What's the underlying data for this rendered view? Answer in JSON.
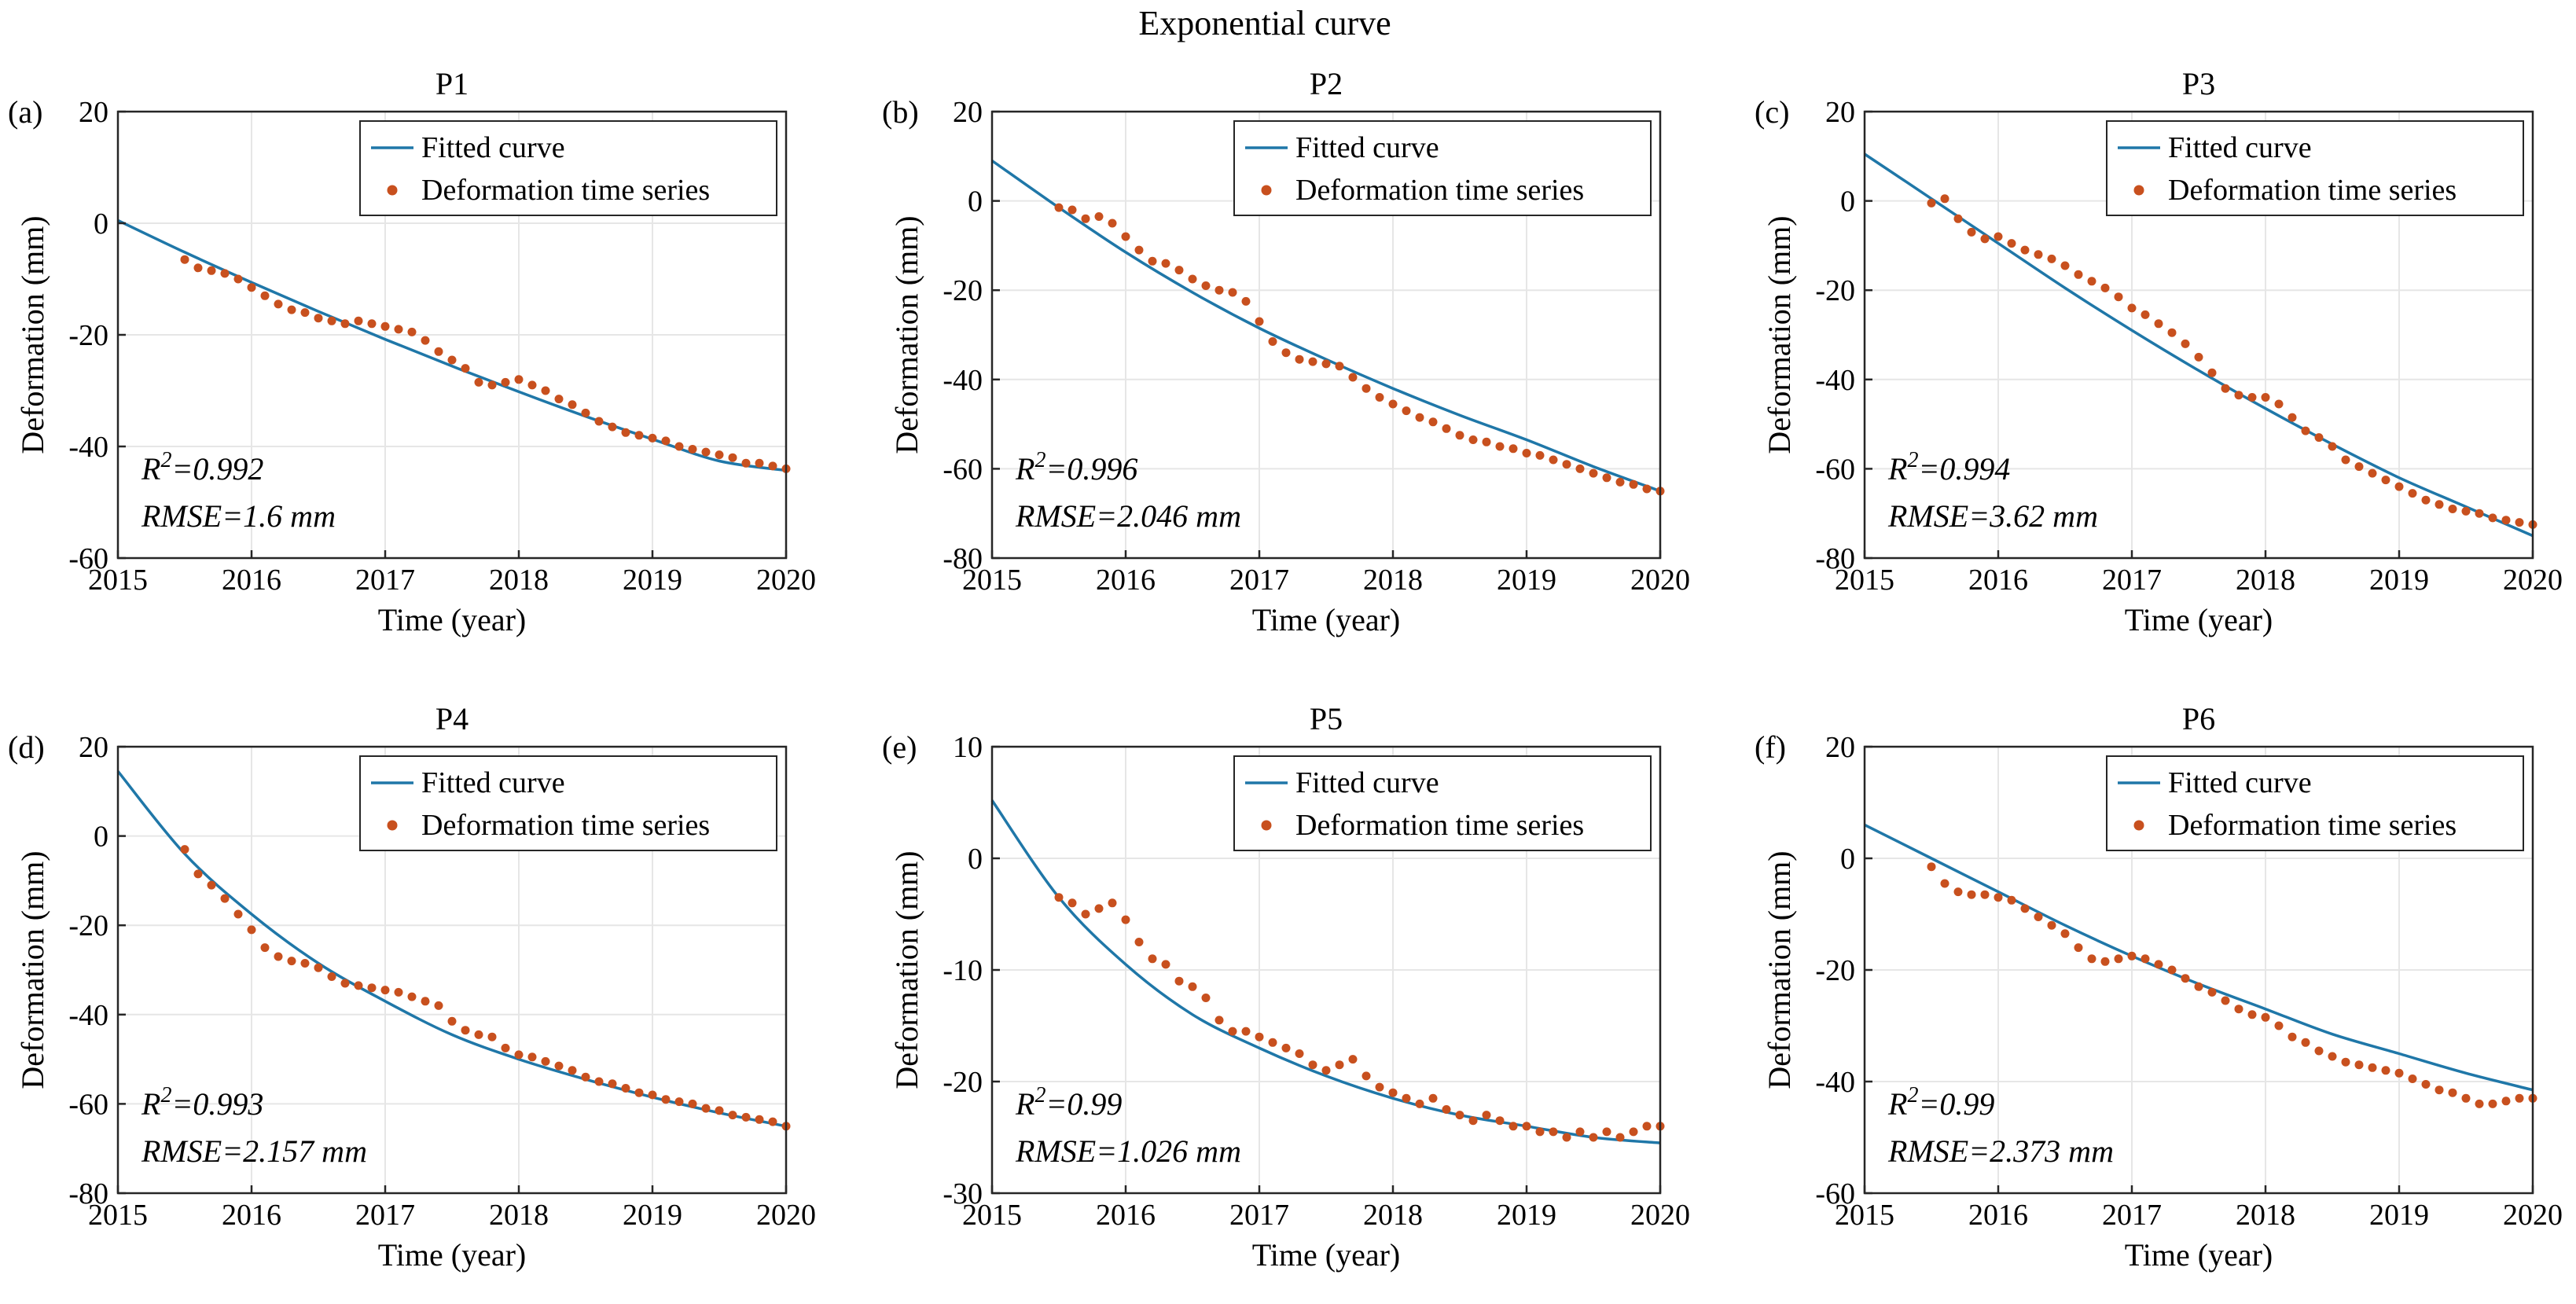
{
  "figure": {
    "title": "Exponential curve"
  },
  "legend": {
    "fit_label": "Fitted curve",
    "obs_label": "Deformation time series",
    "placement": "top-right"
  },
  "colors": {
    "fit": "#1f77a8",
    "obs": "#c8501e",
    "grid": "#e6e6e6",
    "axis": "#262626"
  },
  "chart_data": [
    {
      "type": "scatter",
      "panel": "(a)",
      "title": "P1",
      "xlabel": "Time (year)",
      "ylabel": "Deformation (mm)",
      "xlim": [
        2015,
        2020
      ],
      "ylim": [
        -60,
        20
      ],
      "xticks": [
        2015,
        2016,
        2017,
        2018,
        2019,
        2020
      ],
      "yticks": [
        -60,
        -40,
        -20,
        0,
        20
      ],
      "r2_value": "=0.992",
      "rmse_label": "RMSE=1.6 mm",
      "fit_x": [
        2015,
        2015.5,
        2016,
        2016.5,
        2017,
        2017.5,
        2018,
        2018.5,
        2019,
        2019.5,
        2020
      ],
      "fit_y": [
        0.5,
        -5.2,
        -10.6,
        -15.8,
        -20.8,
        -25.6,
        -30.2,
        -34.6,
        -38.7,
        -42.6,
        -44.3
      ],
      "obs_x": [
        2015.5,
        2015.6,
        2015.7,
        2015.8,
        2015.9,
        2016.0,
        2016.1,
        2016.2,
        2016.3,
        2016.4,
        2016.5,
        2016.6,
        2016.7,
        2016.8,
        2016.9,
        2017.0,
        2017.1,
        2017.2,
        2017.3,
        2017.4,
        2017.5,
        2017.6,
        2017.7,
        2017.8,
        2017.9,
        2018.0,
        2018.1,
        2018.2,
        2018.3,
        2018.4,
        2018.5,
        2018.6,
        2018.7,
        2018.8,
        2018.9,
        2019.0,
        2019.1,
        2019.2,
        2019.3,
        2019.4,
        2019.5,
        2019.6,
        2019.7,
        2019.8,
        2019.9,
        2020.0
      ],
      "obs_y": [
        -6.5,
        -8.0,
        -8.5,
        -9.0,
        -10.0,
        -11.5,
        -13.0,
        -14.5,
        -15.5,
        -16.0,
        -17.0,
        -17.5,
        -18.0,
        -17.5,
        -18.0,
        -18.5,
        -19.0,
        -19.5,
        -21.0,
        -23.0,
        -24.5,
        -26.0,
        -28.5,
        -29.0,
        -28.5,
        -28.0,
        -29.0,
        -30.0,
        -31.5,
        -32.5,
        -34.0,
        -35.5,
        -36.5,
        -37.5,
        -38.0,
        -38.5,
        -39.0,
        -40.0,
        -40.5,
        -41.0,
        -41.5,
        -42.0,
        -43.0,
        -43.0,
        -43.5,
        -44.0
      ]
    },
    {
      "type": "scatter",
      "panel": "(b)",
      "title": "P2",
      "xlabel": "Time (year)",
      "ylabel": "Deformation (mm)",
      "xlim": [
        2015,
        2020
      ],
      "ylim": [
        -80,
        20
      ],
      "xticks": [
        2015,
        2016,
        2017,
        2018,
        2019,
        2020
      ],
      "yticks": [
        -80,
        -60,
        -40,
        -20,
        0,
        20
      ],
      "r2_value": "=0.996",
      "rmse_label": "RMSE=2.046 mm",
      "fit_x": [
        2015,
        2015.5,
        2016,
        2016.5,
        2017,
        2017.5,
        2018,
        2018.5,
        2019,
        2019.5,
        2020
      ],
      "fit_y": [
        9.0,
        -1.5,
        -11.5,
        -20.5,
        -28.5,
        -35.5,
        -42.0,
        -48.0,
        -53.5,
        -59.5,
        -65.0
      ],
      "obs_x": [
        2015.5,
        2015.6,
        2015.7,
        2015.8,
        2015.9,
        2016.0,
        2016.1,
        2016.2,
        2016.3,
        2016.4,
        2016.5,
        2016.6,
        2016.7,
        2016.8,
        2016.9,
        2017.0,
        2017.1,
        2017.2,
        2017.3,
        2017.4,
        2017.5,
        2017.6,
        2017.7,
        2017.8,
        2017.9,
        2018.0,
        2018.1,
        2018.2,
        2018.3,
        2018.4,
        2018.5,
        2018.6,
        2018.7,
        2018.8,
        2018.9,
        2019.0,
        2019.1,
        2019.2,
        2019.3,
        2019.4,
        2019.5,
        2019.6,
        2019.7,
        2019.8,
        2019.9,
        2020.0
      ],
      "obs_y": [
        -1.5,
        -2.0,
        -4.0,
        -3.5,
        -5.0,
        -8.0,
        -11.0,
        -13.5,
        -14.0,
        -15.5,
        -17.5,
        -19.0,
        -20.0,
        -20.5,
        -22.5,
        -27.0,
        -31.5,
        -34.0,
        -35.5,
        -36.0,
        -36.5,
        -37.0,
        -39.5,
        -42.0,
        -44.0,
        -45.5,
        -47.0,
        -48.5,
        -49.5,
        -51.0,
        -52.5,
        -53.5,
        -54.0,
        -55.0,
        -55.5,
        -56.5,
        -57.0,
        -58.0,
        -59.0,
        -60.0,
        -61.0,
        -62.0,
        -63.0,
        -63.5,
        -64.5,
        -65.0
      ]
    },
    {
      "type": "scatter",
      "panel": "(c)",
      "title": "P3",
      "xlabel": "Time (year)",
      "ylabel": "Deformation (mm)",
      "xlim": [
        2015,
        2020
      ],
      "ylim": [
        -80,
        20
      ],
      "xticks": [
        2015,
        2016,
        2017,
        2018,
        2019,
        2020
      ],
      "yticks": [
        -80,
        -60,
        -40,
        -20,
        0,
        20
      ],
      "r2_value": "=0.994",
      "rmse_label": "RMSE=3.62 mm",
      "fit_x": [
        2015,
        2015.5,
        2016,
        2016.5,
        2017,
        2017.5,
        2018,
        2018.5,
        2019,
        2019.5,
        2020
      ],
      "fit_y": [
        10.5,
        0.5,
        -9.5,
        -19.5,
        -29.0,
        -38.0,
        -46.5,
        -54.5,
        -62.0,
        -68.5,
        -75.0
      ],
      "obs_x": [
        2015.5,
        2015.6,
        2015.7,
        2015.8,
        2015.9,
        2016.0,
        2016.1,
        2016.2,
        2016.3,
        2016.4,
        2016.5,
        2016.6,
        2016.7,
        2016.8,
        2016.9,
        2017.0,
        2017.1,
        2017.2,
        2017.3,
        2017.4,
        2017.5,
        2017.6,
        2017.7,
        2017.8,
        2017.9,
        2018.0,
        2018.1,
        2018.2,
        2018.3,
        2018.4,
        2018.5,
        2018.6,
        2018.7,
        2018.8,
        2018.9,
        2019.0,
        2019.1,
        2019.2,
        2019.3,
        2019.4,
        2019.5,
        2019.6,
        2019.7,
        2019.8,
        2019.9,
        2020.0
      ],
      "obs_y": [
        -0.5,
        0.5,
        -4.0,
        -7.0,
        -8.5,
        -8.0,
        -9.5,
        -11.0,
        -12.0,
        -13.0,
        -14.5,
        -16.5,
        -18.0,
        -19.5,
        -21.5,
        -24.0,
        -25.5,
        -27.5,
        -29.5,
        -32.0,
        -35.0,
        -38.5,
        -42.0,
        -43.5,
        -44.0,
        -44.0,
        -45.5,
        -48.5,
        -51.5,
        -53.0,
        -55.0,
        -58.0,
        -59.5,
        -61.0,
        -62.5,
        -64.0,
        -65.5,
        -67.0,
        -68.0,
        -69.0,
        -69.5,
        -70.0,
        -71.0,
        -71.5,
        -72.0,
        -72.5
      ]
    },
    {
      "type": "scatter",
      "panel": "(d)",
      "title": "P4",
      "xlabel": "Time (year)",
      "ylabel": "Deformation (mm)",
      "xlim": [
        2015,
        2020
      ],
      "ylim": [
        -80,
        20
      ],
      "xticks": [
        2015,
        2016,
        2017,
        2018,
        2019,
        2020
      ],
      "yticks": [
        -80,
        -60,
        -40,
        -20,
        0,
        20
      ],
      "r2_value": "=0.993",
      "rmse_label": "RMSE=2.157 mm",
      "fit_x": [
        2015,
        2015.5,
        2016,
        2016.5,
        2017,
        2017.5,
        2018,
        2018.5,
        2019,
        2019.5,
        2020
      ],
      "fit_y": [
        14.5,
        -4.0,
        -17.5,
        -28.5,
        -37.0,
        -44.5,
        -50.0,
        -54.5,
        -58.5,
        -62.0,
        -65.0
      ],
      "obs_x": [
        2015.5,
        2015.6,
        2015.7,
        2015.8,
        2015.9,
        2016.0,
        2016.1,
        2016.2,
        2016.3,
        2016.4,
        2016.5,
        2016.6,
        2016.7,
        2016.8,
        2016.9,
        2017.0,
        2017.1,
        2017.2,
        2017.3,
        2017.4,
        2017.5,
        2017.6,
        2017.7,
        2017.8,
        2017.9,
        2018.0,
        2018.1,
        2018.2,
        2018.3,
        2018.4,
        2018.5,
        2018.6,
        2018.7,
        2018.8,
        2018.9,
        2019.0,
        2019.1,
        2019.2,
        2019.3,
        2019.4,
        2019.5,
        2019.6,
        2019.7,
        2019.8,
        2019.9,
        2020.0
      ],
      "obs_y": [
        -3.0,
        -8.5,
        -11.0,
        -14.0,
        -17.5,
        -21.0,
        -25.0,
        -27.0,
        -28.0,
        -28.5,
        -29.5,
        -31.5,
        -33.0,
        -33.5,
        -34.0,
        -34.5,
        -35.0,
        -36.0,
        -37.0,
        -38.0,
        -41.5,
        -43.5,
        -44.5,
        -45.0,
        -47.5,
        -49.0,
        -49.5,
        -50.5,
        -51.5,
        -52.5,
        -54.0,
        -55.0,
        -55.5,
        -56.5,
        -57.5,
        -58.0,
        -59.0,
        -59.5,
        -60.0,
        -61.0,
        -61.5,
        -62.5,
        -63.0,
        -63.5,
        -64.0,
        -65.0
      ]
    },
    {
      "type": "scatter",
      "panel": "(e)",
      "title": "P5",
      "xlabel": "Time (year)",
      "ylabel": "Deformation (mm)",
      "xlim": [
        2015,
        2020
      ],
      "ylim": [
        -30,
        10
      ],
      "xticks": [
        2015,
        2016,
        2017,
        2018,
        2019,
        2020
      ],
      "yticks": [
        -30,
        -20,
        -10,
        0,
        10
      ],
      "r2_value": "=0.99",
      "rmse_label": "RMSE=1.026 mm",
      "fit_x": [
        2015,
        2015.5,
        2016,
        2016.5,
        2017,
        2017.5,
        2018,
        2018.5,
        2019,
        2019.5,
        2020
      ],
      "fit_y": [
        5.2,
        -3.5,
        -9.5,
        -14.0,
        -17.0,
        -19.5,
        -21.5,
        -23.0,
        -24.0,
        -25.0,
        -25.5
      ],
      "obs_x": [
        2015.5,
        2015.6,
        2015.7,
        2015.8,
        2015.9,
        2016.0,
        2016.1,
        2016.2,
        2016.3,
        2016.4,
        2016.5,
        2016.6,
        2016.7,
        2016.8,
        2016.9,
        2017.0,
        2017.1,
        2017.2,
        2017.3,
        2017.4,
        2017.5,
        2017.6,
        2017.7,
        2017.8,
        2017.9,
        2018.0,
        2018.1,
        2018.2,
        2018.3,
        2018.4,
        2018.5,
        2018.6,
        2018.7,
        2018.8,
        2018.9,
        2019.0,
        2019.1,
        2019.2,
        2019.3,
        2019.4,
        2019.5,
        2019.6,
        2019.7,
        2019.8,
        2019.9,
        2020.0
      ],
      "obs_y": [
        -3.5,
        -4.0,
        -5.0,
        -4.5,
        -4.0,
        -5.5,
        -7.5,
        -9.0,
        -9.5,
        -11.0,
        -11.5,
        -12.5,
        -14.5,
        -15.5,
        -15.5,
        -16.0,
        -16.5,
        -17.0,
        -17.5,
        -18.5,
        -19.0,
        -18.5,
        -18.0,
        -19.5,
        -20.5,
        -21.0,
        -21.5,
        -22.0,
        -21.5,
        -22.5,
        -23.0,
        -23.5,
        -23.0,
        -23.5,
        -24.0,
        -24.0,
        -24.5,
        -24.5,
        -25.0,
        -24.5,
        -25.0,
        -24.5,
        -25.0,
        -24.5,
        -24.0,
        -24.0
      ]
    },
    {
      "type": "scatter",
      "panel": "(f)",
      "title": "P6",
      "xlabel": "Time (year)",
      "ylabel": "Deformation (mm)",
      "xlim": [
        2015,
        2020
      ],
      "ylim": [
        -60,
        20
      ],
      "xticks": [
        2015,
        2016,
        2017,
        2018,
        2019,
        2020
      ],
      "yticks": [
        -60,
        -40,
        -20,
        0,
        20
      ],
      "r2_value": "=0.99",
      "rmse_label": "RMSE=2.373 mm",
      "fit_x": [
        2015,
        2015.5,
        2016,
        2016.5,
        2017,
        2017.5,
        2018,
        2018.5,
        2019,
        2019.5,
        2020
      ],
      "fit_y": [
        6.0,
        0.0,
        -6.0,
        -12.0,
        -17.5,
        -22.5,
        -27.0,
        -31.5,
        -35.0,
        -38.5,
        -41.5
      ],
      "obs_x": [
        2015.5,
        2015.6,
        2015.7,
        2015.8,
        2015.9,
        2016.0,
        2016.1,
        2016.2,
        2016.3,
        2016.4,
        2016.5,
        2016.6,
        2016.7,
        2016.8,
        2016.9,
        2017.0,
        2017.1,
        2017.2,
        2017.3,
        2017.4,
        2017.5,
        2017.6,
        2017.7,
        2017.8,
        2017.9,
        2018.0,
        2018.1,
        2018.2,
        2018.3,
        2018.4,
        2018.5,
        2018.6,
        2018.7,
        2018.8,
        2018.9,
        2019.0,
        2019.1,
        2019.2,
        2019.3,
        2019.4,
        2019.5,
        2019.6,
        2019.7,
        2019.8,
        2019.9,
        2020.0
      ],
      "obs_y": [
        -1.5,
        -4.5,
        -6.0,
        -6.5,
        -6.5,
        -7.0,
        -7.5,
        -9.0,
        -10.5,
        -12.0,
        -13.5,
        -16.0,
        -18.0,
        -18.5,
        -18.0,
        -17.5,
        -18.0,
        -19.0,
        -20.0,
        -21.5,
        -23.0,
        -24.0,
        -25.5,
        -27.0,
        -28.0,
        -28.5,
        -30.0,
        -32.0,
        -33.0,
        -34.5,
        -35.5,
        -36.5,
        -37.0,
        -37.5,
        -38.0,
        -38.5,
        -39.5,
        -40.5,
        -41.5,
        -42.0,
        -43.0,
        -44.0,
        -44.0,
        -43.5,
        -43.0,
        -43.0
      ]
    }
  ]
}
